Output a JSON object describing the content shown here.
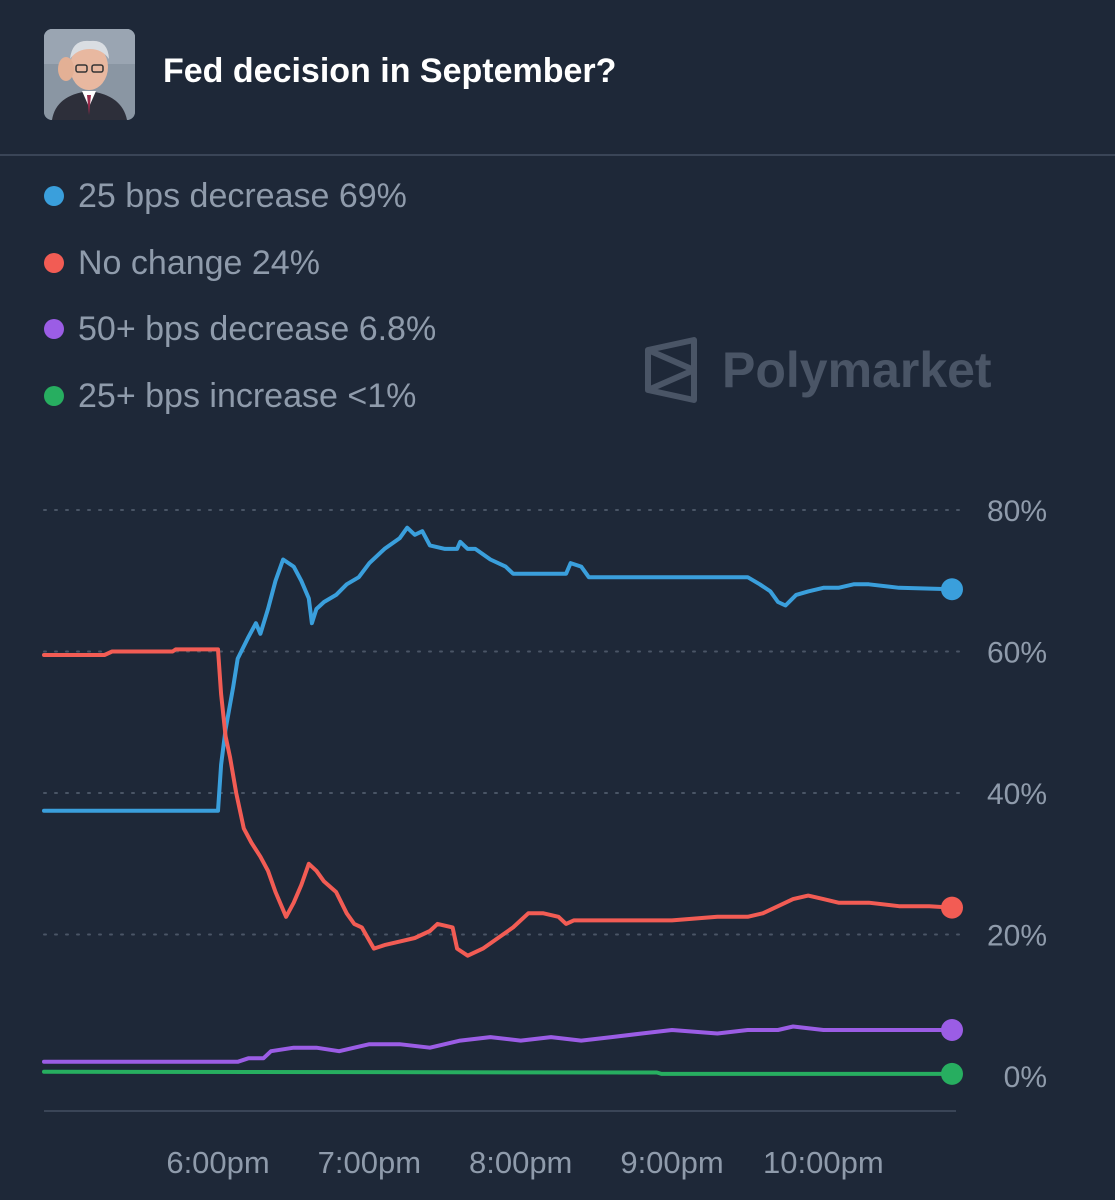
{
  "header": {
    "title": "Fed decision in September?"
  },
  "watermark": {
    "brand": "Polymarket"
  },
  "colors": {
    "background": "#1e2838",
    "blue": "#3a9fdc",
    "red": "#f25c54",
    "purple": "#9b5de5",
    "green": "#27ae60",
    "muted_text": "#8f9bab",
    "grid": "#4a5566"
  },
  "legend": [
    {
      "label": "25 bps decrease 69%",
      "color": "#3a9fdc"
    },
    {
      "label": "No change 24%",
      "color": "#f25c54"
    },
    {
      "label": "50+ bps decrease 6.8%",
      "color": "#9b5de5"
    },
    {
      "label": "25+ bps increase <1%",
      "color": "#27ae60"
    }
  ],
  "chart_data": {
    "type": "line",
    "title": "Fed decision in September?",
    "x_unit": "time",
    "x_ticks": [
      "6:00pm",
      "7:00pm",
      "8:00pm",
      "9:00pm",
      "10:00pm"
    ],
    "x_tick_hours": [
      18,
      19,
      20,
      21,
      22
    ],
    "y_ticks": [
      "0%",
      "20%",
      "40%",
      "60%",
      "80%"
    ],
    "y_tick_values": [
      0,
      20,
      40,
      60,
      80
    ],
    "ylim": [
      0,
      80
    ],
    "xlim_hours": [
      16.85,
      22.85
    ],
    "grid": "horizontal dotted",
    "legend_position": "top-left",
    "series": [
      {
        "name": "25 bps decrease",
        "color": "#3a9fdc",
        "current": "69%",
        "points": [
          [
            16.85,
            37.5
          ],
          [
            18.0,
            37.5
          ],
          [
            18.02,
            44
          ],
          [
            18.05,
            49
          ],
          [
            18.1,
            55
          ],
          [
            18.13,
            59
          ],
          [
            18.2,
            62
          ],
          [
            18.25,
            64
          ],
          [
            18.28,
            62.5
          ],
          [
            18.33,
            66
          ],
          [
            18.38,
            70
          ],
          [
            18.43,
            73
          ],
          [
            18.5,
            72
          ],
          [
            18.55,
            70
          ],
          [
            18.6,
            67.5
          ],
          [
            18.62,
            64
          ],
          [
            18.65,
            66
          ],
          [
            18.7,
            67
          ],
          [
            18.78,
            68
          ],
          [
            18.85,
            69.5
          ],
          [
            18.93,
            70.5
          ],
          [
            19.0,
            72.5
          ],
          [
            19.1,
            74.5
          ],
          [
            19.2,
            76
          ],
          [
            19.25,
            77.5
          ],
          [
            19.3,
            76.5
          ],
          [
            19.35,
            77
          ],
          [
            19.4,
            75
          ],
          [
            19.5,
            74.5
          ],
          [
            19.58,
            74.5
          ],
          [
            19.6,
            75.5
          ],
          [
            19.65,
            74.5
          ],
          [
            19.7,
            74.5
          ],
          [
            19.8,
            73
          ],
          [
            19.9,
            72
          ],
          [
            19.95,
            71
          ],
          [
            20.3,
            71
          ],
          [
            20.33,
            72.5
          ],
          [
            20.4,
            72
          ],
          [
            20.45,
            70.5
          ],
          [
            21.0,
            70.5
          ],
          [
            21.5,
            70.5
          ],
          [
            21.58,
            69.5
          ],
          [
            21.65,
            68.5
          ],
          [
            21.7,
            67
          ],
          [
            21.75,
            66.5
          ],
          [
            21.82,
            68
          ],
          [
            21.9,
            68.5
          ],
          [
            22.0,
            69
          ],
          [
            22.1,
            69
          ],
          [
            22.2,
            69.5
          ],
          [
            22.3,
            69.5
          ],
          [
            22.5,
            69
          ],
          [
            22.85,
            68.8
          ]
        ]
      },
      {
        "name": "No change",
        "color": "#f25c54",
        "current": "24%",
        "points": [
          [
            16.85,
            59.5
          ],
          [
            17.25,
            59.5
          ],
          [
            17.3,
            60
          ],
          [
            17.7,
            60
          ],
          [
            17.72,
            60.3
          ],
          [
            18.0,
            60.3
          ],
          [
            18.02,
            54
          ],
          [
            18.05,
            48
          ],
          [
            18.08,
            45
          ],
          [
            18.12,
            40
          ],
          [
            18.17,
            35
          ],
          [
            18.22,
            33
          ],
          [
            18.28,
            31
          ],
          [
            18.33,
            29
          ],
          [
            18.38,
            26
          ],
          [
            18.45,
            22.5
          ],
          [
            18.5,
            24.5
          ],
          [
            18.55,
            27
          ],
          [
            18.6,
            30
          ],
          [
            18.65,
            29
          ],
          [
            18.7,
            27.5
          ],
          [
            18.78,
            26
          ],
          [
            18.85,
            23
          ],
          [
            18.9,
            21.5
          ],
          [
            18.95,
            21
          ],
          [
            19.03,
            18
          ],
          [
            19.1,
            18.5
          ],
          [
            19.2,
            19
          ],
          [
            19.3,
            19.5
          ],
          [
            19.4,
            20.5
          ],
          [
            19.45,
            21.5
          ],
          [
            19.55,
            21
          ],
          [
            19.58,
            18
          ],
          [
            19.65,
            17
          ],
          [
            19.75,
            18
          ],
          [
            19.85,
            19.5
          ],
          [
            19.95,
            21
          ],
          [
            20.05,
            23
          ],
          [
            20.15,
            23
          ],
          [
            20.25,
            22.5
          ],
          [
            20.3,
            21.5
          ],
          [
            20.35,
            22
          ],
          [
            20.5,
            22
          ],
          [
            20.8,
            22
          ],
          [
            21.0,
            22
          ],
          [
            21.3,
            22.5
          ],
          [
            21.5,
            22.5
          ],
          [
            21.6,
            23
          ],
          [
            21.7,
            24
          ],
          [
            21.8,
            25
          ],
          [
            21.9,
            25.5
          ],
          [
            22.0,
            25
          ],
          [
            22.1,
            24.5
          ],
          [
            22.3,
            24.5
          ],
          [
            22.5,
            24
          ],
          [
            22.7,
            24
          ],
          [
            22.85,
            23.8
          ]
        ]
      },
      {
        "name": "50+ bps decrease",
        "color": "#9b5de5",
        "current": "6.8%",
        "points": [
          [
            16.85,
            2
          ],
          [
            18.13,
            2
          ],
          [
            18.2,
            2.5
          ],
          [
            18.3,
            2.5
          ],
          [
            18.35,
            3.5
          ],
          [
            18.5,
            4
          ],
          [
            18.65,
            4
          ],
          [
            18.8,
            3.5
          ],
          [
            18.9,
            4
          ],
          [
            19.0,
            4.5
          ],
          [
            19.2,
            4.5
          ],
          [
            19.4,
            4
          ],
          [
            19.6,
            5
          ],
          [
            19.8,
            5.5
          ],
          [
            20.0,
            5
          ],
          [
            20.2,
            5.5
          ],
          [
            20.4,
            5
          ],
          [
            20.6,
            5.5
          ],
          [
            20.8,
            6
          ],
          [
            21.0,
            6.5
          ],
          [
            21.3,
            6
          ],
          [
            21.5,
            6.5
          ],
          [
            21.7,
            6.5
          ],
          [
            21.8,
            7
          ],
          [
            22.0,
            6.5
          ],
          [
            22.3,
            6.5
          ],
          [
            22.6,
            6.5
          ],
          [
            22.85,
            6.5
          ]
        ]
      },
      {
        "name": "25+ bps increase",
        "color": "#27ae60",
        "current": "<1%",
        "points": [
          [
            16.85,
            0.6
          ],
          [
            20.9,
            0.5
          ],
          [
            20.93,
            0.3
          ],
          [
            22.85,
            0.3
          ]
        ]
      }
    ]
  }
}
